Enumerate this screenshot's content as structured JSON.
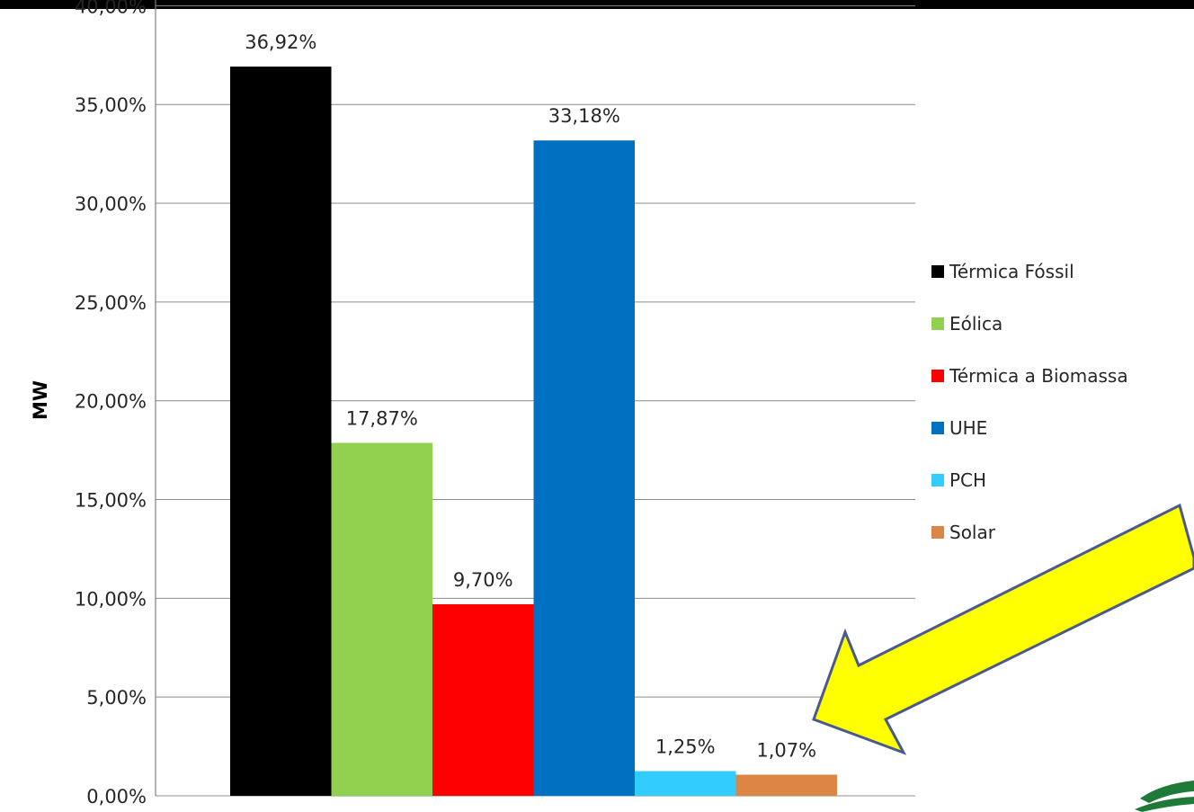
{
  "chart_data": {
    "type": "bar",
    "title": "",
    "xlabel": "",
    "ylabel": "MW",
    "ylim": [
      0,
      40
    ],
    "grid": true,
    "legend_position": "right",
    "y_ticks": [
      "0,00%",
      "5,00%",
      "10,00%",
      "15,00%",
      "20,00%",
      "25,00%",
      "30,00%",
      "35,00%",
      "40,00%"
    ],
    "series": [
      {
        "name": "Térmica Fóssil",
        "value": 36.92,
        "label": "36,92%",
        "color": "#000000"
      },
      {
        "name": "Eólica",
        "value": 17.87,
        "label": "17,87%",
        "color": "#92d050"
      },
      {
        "name": "Térmica a Biomassa",
        "value": 9.7,
        "label": "9,70%",
        "color": "#ff0000"
      },
      {
        "name": "UHE",
        "value": 33.18,
        "label": "33,18%",
        "color": "#0070c0"
      },
      {
        "name": "PCH",
        "value": 1.25,
        "label": "1,25%",
        "color": "#33ccff"
      },
      {
        "name": "Solar",
        "value": 1.07,
        "label": "1,07%",
        "color": "#dd8544"
      }
    ]
  },
  "annotation": {
    "arrow_color": "#ffff00",
    "arrow_stroke": "#4a5a8c",
    "arrow_icon": "yellow-arrow-icon"
  }
}
